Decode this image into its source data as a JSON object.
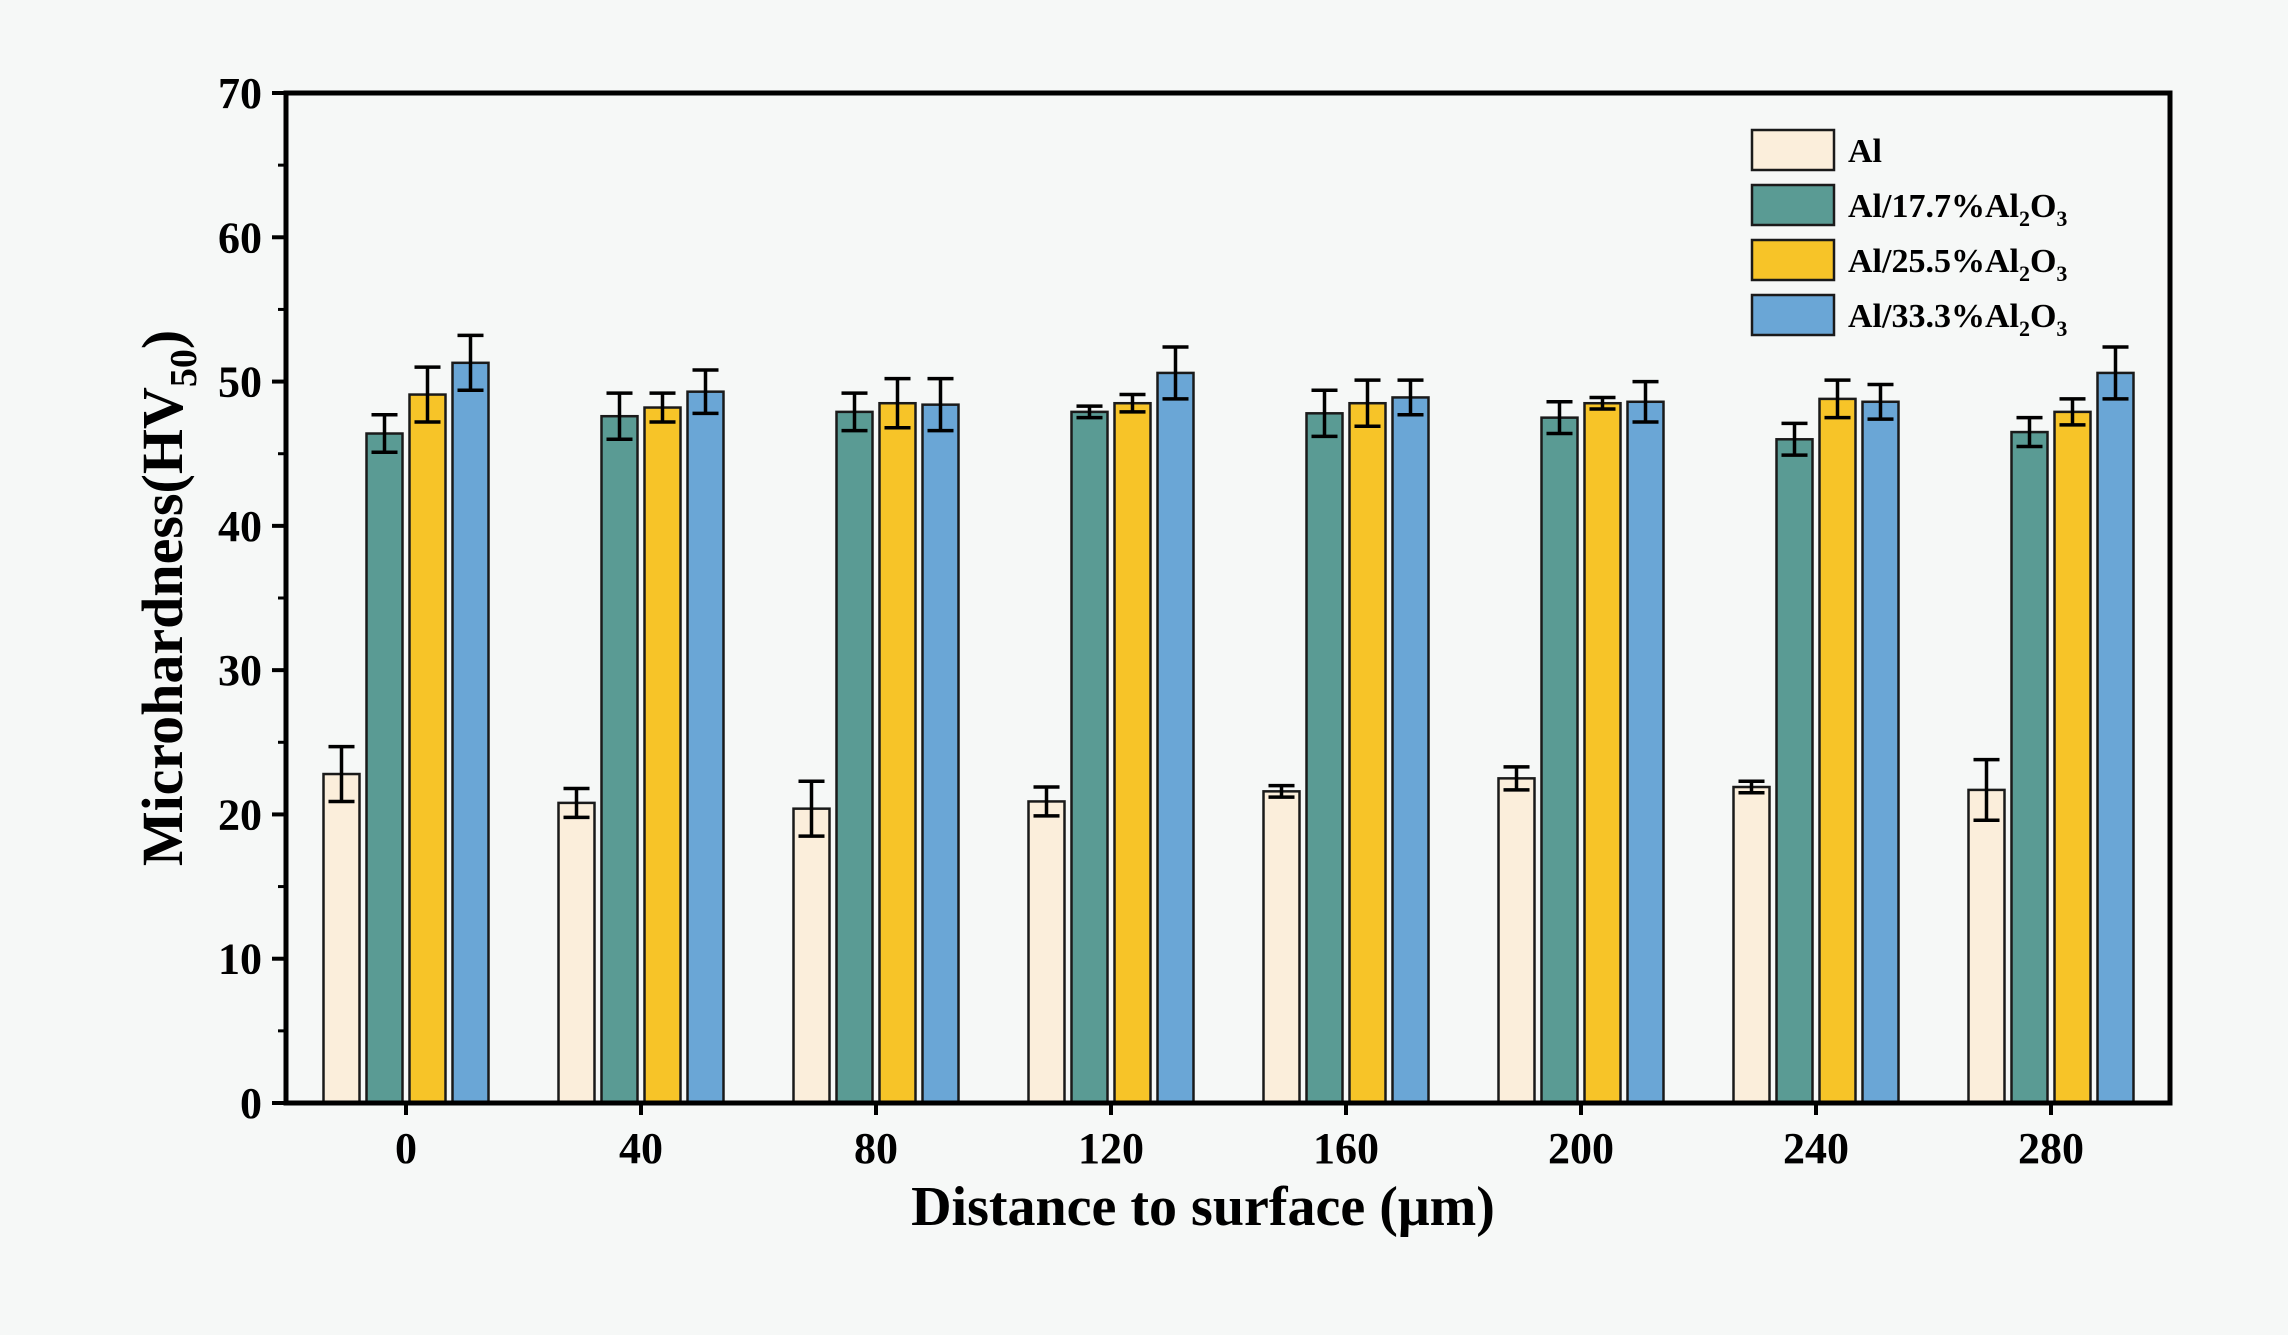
{
  "chart_data": {
    "type": "bar",
    "xlabel": "Distance to surface (μm)",
    "ylabel_main": "Microhardness(HV",
    "ylabel_sub": "50",
    "ylabel_close": ")",
    "ylim": [
      0,
      70
    ],
    "yticks": [
      "0",
      "10",
      "20",
      "30",
      "40",
      "50",
      "60",
      "70"
    ],
    "categories": [
      "0",
      "40",
      "80",
      "120",
      "160",
      "200",
      "240",
      "280"
    ],
    "series": [
      {
        "name": "Al",
        "legend_main": "Al",
        "legend_sub": "",
        "legend_end": "",
        "legend_sub2": "",
        "color": "#fbeedb",
        "values": [
          22.8,
          20.8,
          20.4,
          20.9,
          21.6,
          22.5,
          21.9,
          21.7
        ],
        "errors": [
          1.9,
          1.0,
          1.9,
          1.0,
          0.4,
          0.8,
          0.4,
          2.1
        ]
      },
      {
        "name": "Al/17.7%Al2O3",
        "legend_main": "Al/17.7%Al",
        "legend_sub": "2",
        "legend_end": "O",
        "legend_sub2": "3",
        "color": "#5a9b94",
        "values": [
          46.4,
          47.6,
          47.9,
          47.9,
          47.8,
          47.5,
          46.0,
          46.5
        ],
        "errors": [
          1.3,
          1.6,
          1.3,
          0.4,
          1.6,
          1.1,
          1.1,
          1.0
        ]
      },
      {
        "name": "Al/25.5%Al2O3",
        "legend_main": "Al/25.5%Al",
        "legend_sub": "2",
        "legend_end": "O",
        "legend_sub2": "3",
        "color": "#f7c428",
        "values": [
          49.1,
          48.2,
          48.5,
          48.5,
          48.5,
          48.5,
          48.8,
          47.9
        ],
        "errors": [
          1.9,
          1.0,
          1.7,
          0.6,
          1.6,
          0.4,
          1.3,
          0.9
        ]
      },
      {
        "name": "Al/33.3%Al2O3",
        "legend_main": "Al/33.3%Al",
        "legend_sub": "2",
        "legend_end": "O",
        "legend_sub2": "3",
        "color": "#6aa6d6",
        "values": [
          51.3,
          49.3,
          48.4,
          50.6,
          48.9,
          48.6,
          48.6,
          50.6
        ],
        "errors": [
          1.9,
          1.5,
          1.8,
          1.8,
          1.2,
          1.4,
          1.2,
          1.8
        ]
      }
    ]
  }
}
